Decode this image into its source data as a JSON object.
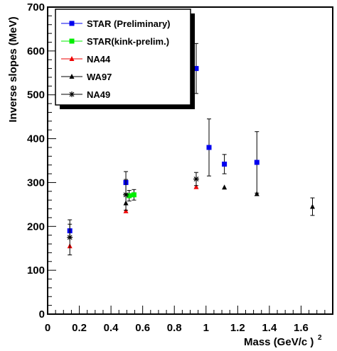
{
  "chart_data": {
    "type": "scatter",
    "xlabel": "Mass (GeV/c )",
    "ylabel": "Inverse slopes (MeV)",
    "xlim": [
      0,
      1.8
    ],
    "ylim": [
      0,
      700
    ],
    "x_ticks": [
      "0",
      "0.2",
      "0.4",
      "0.6",
      "0.8",
      "1",
      "1.2",
      "1.4",
      "1.6"
    ],
    "y_ticks": [
      "0",
      "100",
      "200",
      "300",
      "400",
      "500",
      "600",
      "700"
    ],
    "legend_position": "top-left",
    "series": [
      {
        "name": "STAR (Preliminary)",
        "marker": "square",
        "color": "#0000ee",
        "points": [
          {
            "x": 0.14,
            "y": 190,
            "err": 15
          },
          {
            "x": 0.494,
            "y": 300,
            "err": 25
          },
          {
            "x": 0.938,
            "y": 560,
            "err": 57
          },
          {
            "x": 1.019,
            "y": 380,
            "err": 65
          },
          {
            "x": 1.116,
            "y": 342,
            "err": 22
          },
          {
            "x": 1.321,
            "y": 346,
            "err": 70
          }
        ]
      },
      {
        "name": "STAR(kink-prelim.)",
        "marker": "square",
        "color": "#00ee00",
        "points": [
          {
            "x": 0.515,
            "y": 270,
            "err": 12
          },
          {
            "x": 0.545,
            "y": 272,
            "err": 12
          }
        ]
      },
      {
        "name": "NA44",
        "marker": "triangle",
        "color": "#ee0000",
        "points": [
          {
            "x": 0.14,
            "y": 155,
            "err": 0
          },
          {
            "x": 0.494,
            "y": 235,
            "err": 0
          },
          {
            "x": 0.938,
            "y": 290,
            "err": 0
          }
        ]
      },
      {
        "name": "WA97",
        "marker": "triangle",
        "color": "#000000",
        "points": [
          {
            "x": 0.494,
            "y": 253,
            "err": 0
          },
          {
            "x": 1.116,
            "y": 289,
            "err": 0
          },
          {
            "x": 1.321,
            "y": 274,
            "err": 0
          },
          {
            "x": 1.672,
            "y": 245,
            "err": 20
          }
        ]
      },
      {
        "name": "NA49",
        "marker": "star",
        "color": "#000000",
        "points": [
          {
            "x": 0.14,
            "y": 175,
            "err": 40
          },
          {
            "x": 0.494,
            "y": 272,
            "err": 35
          },
          {
            "x": 0.938,
            "y": 308,
            "err": 15
          }
        ]
      }
    ]
  }
}
